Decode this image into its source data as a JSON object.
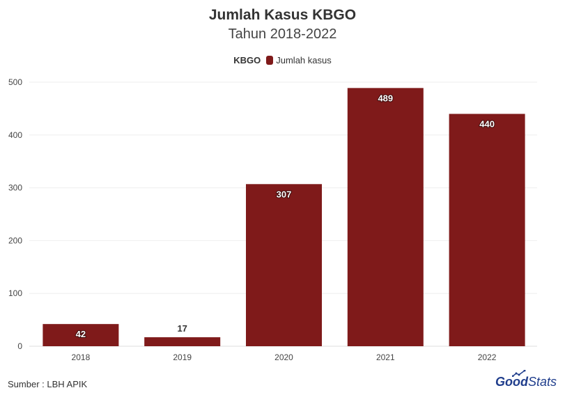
{
  "chart_data": {
    "type": "bar",
    "title": "Jumlah Kasus KBGO",
    "subtitle": "Tahun 2018-2022",
    "legend": {
      "group_label": "KBGO",
      "position": "top-center",
      "entries": [
        {
          "name": "Jumlah kasus",
          "color": "#7f1a1a"
        }
      ]
    },
    "categories": [
      "2018",
      "2019",
      "2020",
      "2021",
      "2022"
    ],
    "series": [
      {
        "name": "Jumlah kasus",
        "values": [
          42,
          17,
          307,
          489,
          440
        ],
        "color": "#7f1a1a"
      }
    ],
    "ylim": [
      0,
      500
    ],
    "yticks": [
      0,
      100,
      200,
      300,
      400,
      500
    ],
    "grid": true,
    "xlabel": "",
    "ylabel": ""
  },
  "source_text": "Sumber : LBH APIK",
  "brand": {
    "part1": "Good",
    "part2": "Stats"
  }
}
